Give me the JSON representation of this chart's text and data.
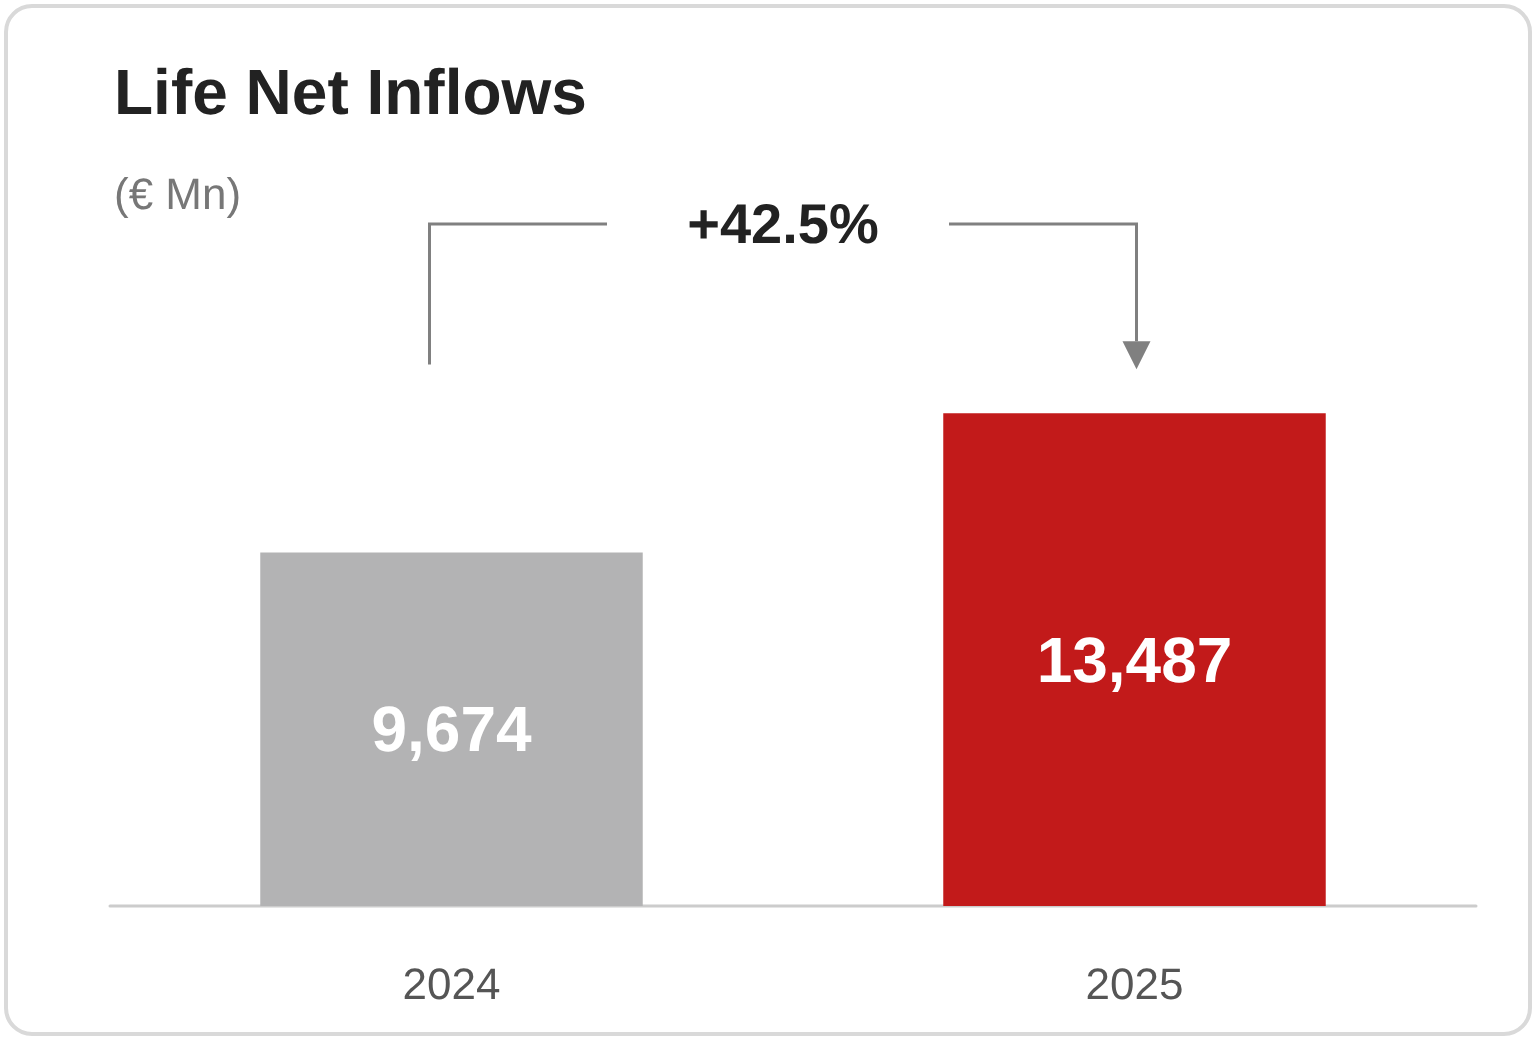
{
  "chart_data": {
    "type": "bar",
    "title": "Life Net Inflows",
    "subtitle": "(€ Mn)",
    "categories": [
      "2024",
      "2025"
    ],
    "values": [
      9674,
      13487
    ],
    "colors": [
      "#b3b3b4",
      "#c21a1a"
    ],
    "value_labels": [
      "9,674",
      "13,487"
    ],
    "annotations": [
      "+42.5%"
    ]
  }
}
